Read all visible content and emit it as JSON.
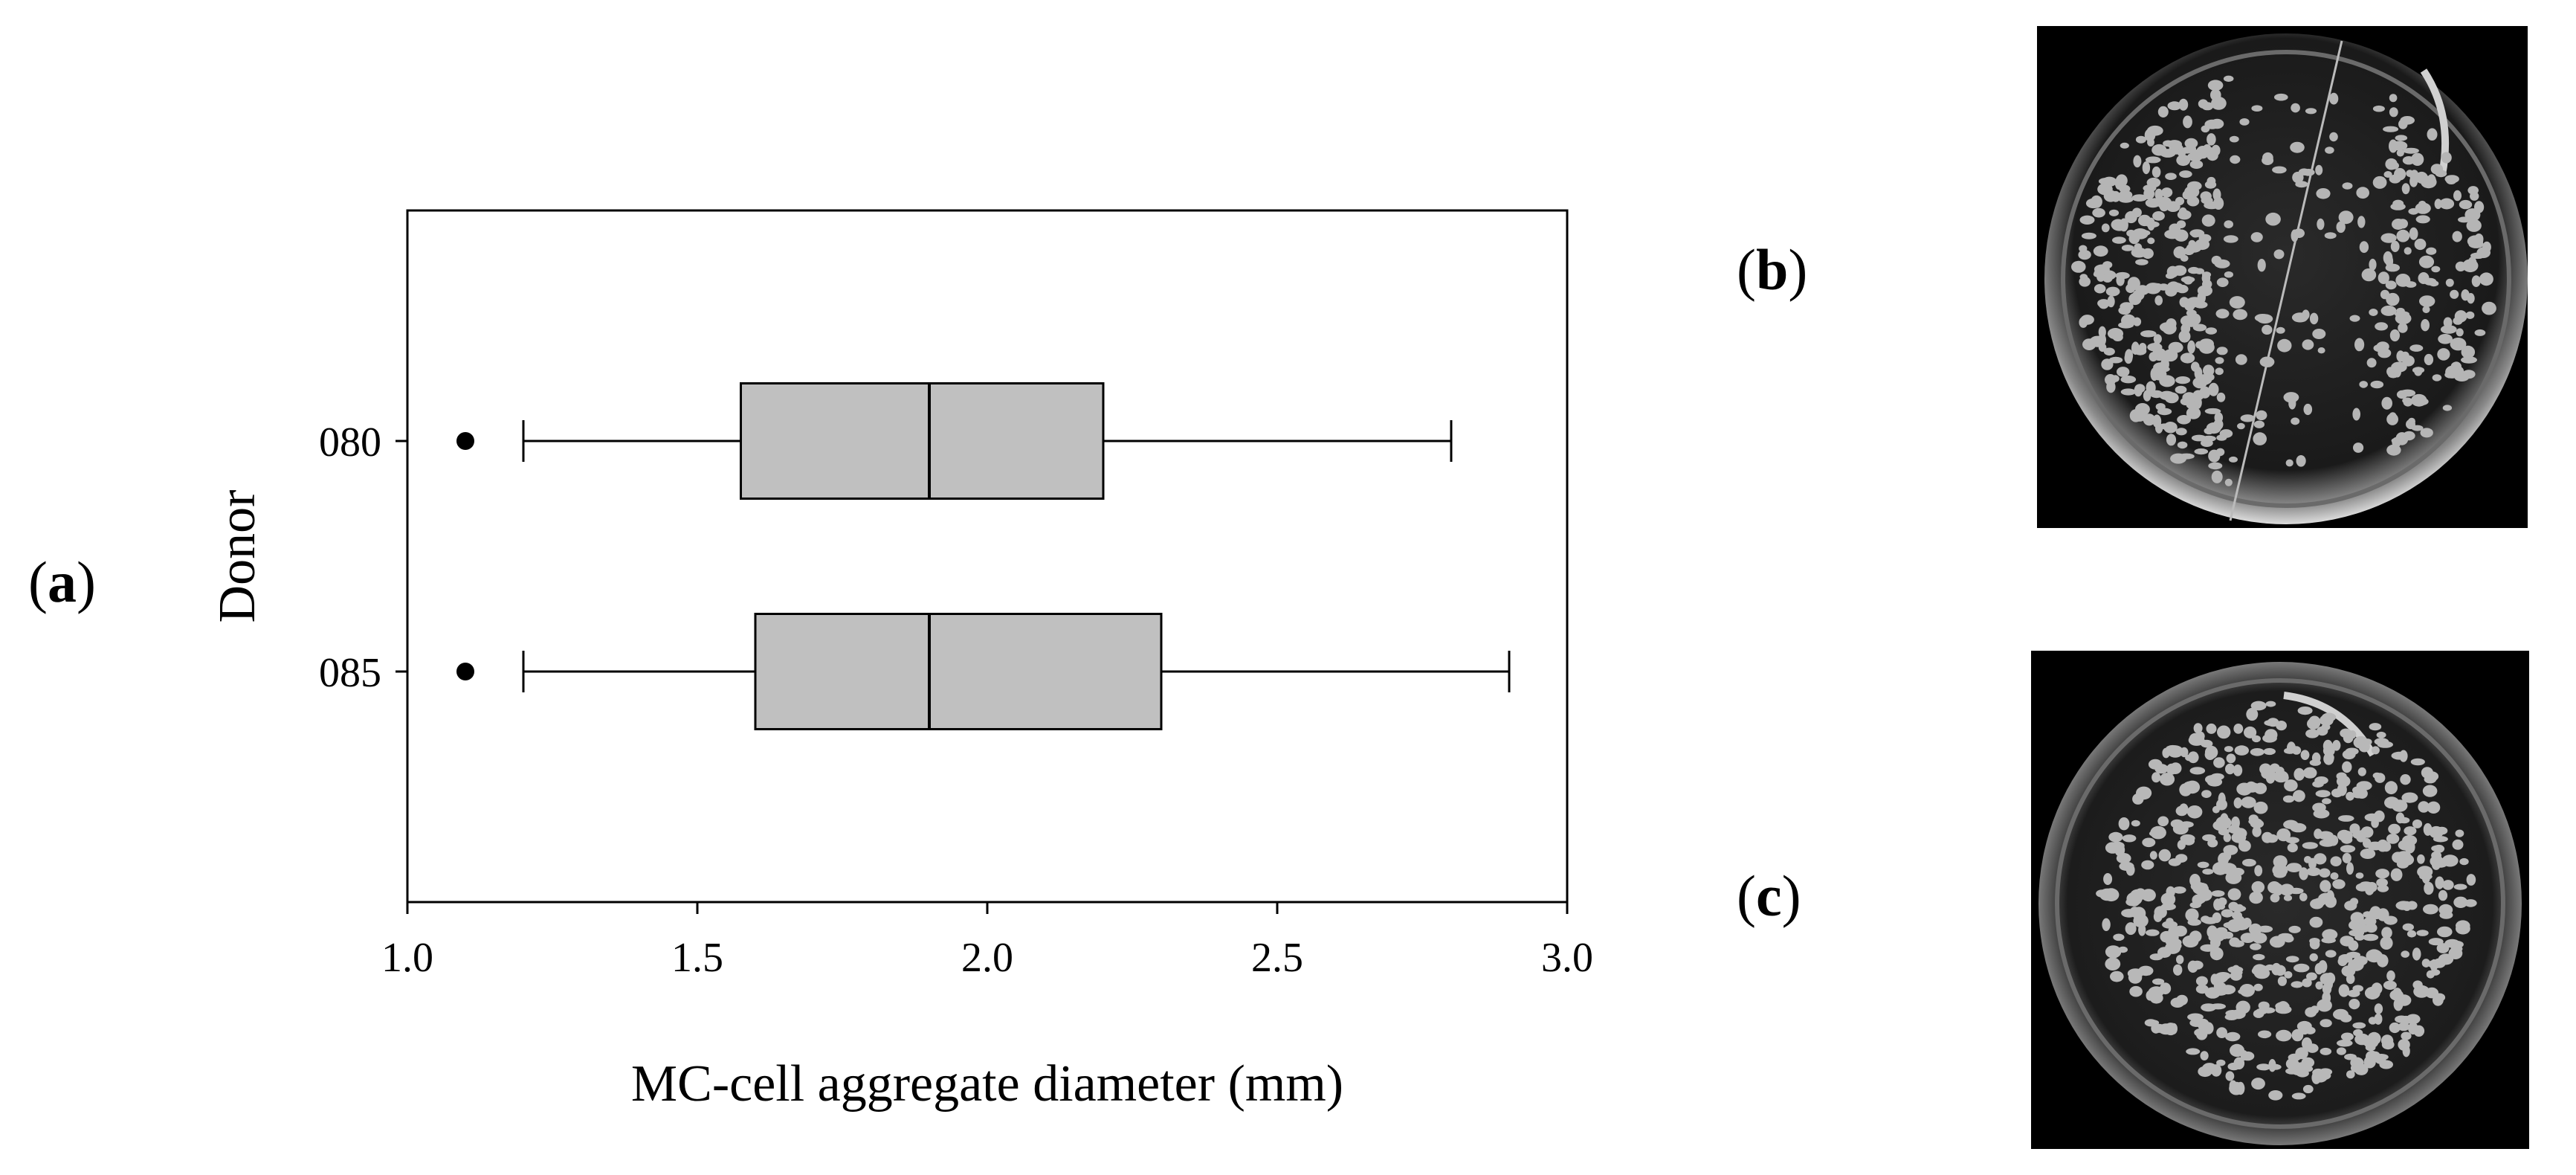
{
  "panel_labels": {
    "a": "a",
    "b": "b",
    "c": "c"
  },
  "chart_data": {
    "type": "box",
    "orientation": "horizontal",
    "title": "",
    "xlabel": "MC-cell aggregate diameter (mm)",
    "ylabel": "Donor",
    "xlim": [
      1.0,
      3.0
    ],
    "xticks": [
      "1.0",
      "1.5",
      "2.0",
      "2.5",
      "3.0"
    ],
    "categories": [
      "080",
      "085"
    ],
    "boxes": [
      {
        "name": "080",
        "whisker_low": 1.2,
        "q1": 1.575,
        "median": 1.9,
        "q3": 2.2,
        "whisker_high": 2.8,
        "outliers": [
          1.1
        ]
      },
      {
        "name": "085",
        "whisker_low": 1.2,
        "q1": 1.6,
        "median": 1.9,
        "q3": 2.3,
        "whisker_high": 2.9,
        "outliers": [
          1.1
        ]
      }
    ],
    "box_color": "#c0c0c0",
    "grid": false
  },
  "photos": [
    {
      "panel": "b",
      "description_icon": "petri-dish-photo"
    },
    {
      "panel": "c",
      "description_icon": "petri-dish-photo"
    }
  ]
}
